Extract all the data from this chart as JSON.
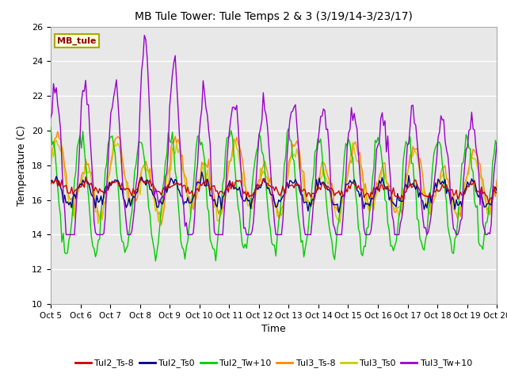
{
  "title": "MB Tule Tower: Tule Temps 2 & 3 (3/19/14-3/23/17)",
  "xlabel": "Time",
  "ylabel": "Temperature (C)",
  "ylim": [
    10,
    26
  ],
  "yticks": [
    10,
    12,
    14,
    16,
    18,
    20,
    22,
    24,
    26
  ],
  "background_color": "#e8e8e8",
  "figure_bg": "#ffffff",
  "annotation_text": "MB_tule",
  "annotation_color": "#8b0000",
  "annotation_bg": "#ffffe0",
  "annotation_border": "#aaaa00",
  "series_colors": {
    "Tul2_Ts-8": "#cc0000",
    "Tul2_Ts0": "#00008b",
    "Tul2_Tw+10": "#00cc00",
    "Tul3_Ts-8": "#ff8800",
    "Tul3_Ts0": "#cccc00",
    "Tul3_Tw+10": "#9900cc"
  },
  "x_tick_labels": [
    "Oct 5",
    "Oct 6",
    "Oct 7",
    "Oct 8",
    "Oct 9",
    "Oct 10",
    "Oct 11",
    "Oct 12",
    "Oct 13",
    "Oct 14",
    "Oct 15",
    "Oct 16",
    "Oct 17",
    "Oct 18",
    "Oct 19",
    "Oct 20"
  ],
  "figsize": [
    6.4,
    4.8
  ],
  "dpi": 100
}
